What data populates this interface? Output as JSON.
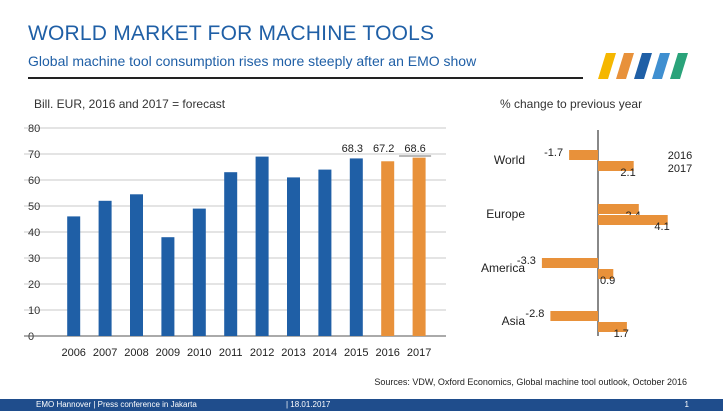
{
  "header": {
    "title": "WORLD MARKET FOR MACHINE TOOLS",
    "subtitle": "Global machine tool consumption rises more steeply after an EMO show"
  },
  "chart_data": [
    {
      "type": "bar",
      "ylabel": "Bill. EUR, 2016 and 2017 = forecast",
      "categories": [
        "2006",
        "2007",
        "2008",
        "2009",
        "2010",
        "2011",
        "2012",
        "2013",
        "2014",
        "2015",
        "2016",
        "2017"
      ],
      "values": [
        46,
        52,
        54.5,
        38,
        49,
        63,
        69,
        61,
        64,
        68.3,
        67.2,
        68.6
      ],
      "colors": [
        "#1f5fa6",
        "#1f5fa6",
        "#1f5fa6",
        "#1f5fa6",
        "#1f5fa6",
        "#1f5fa6",
        "#1f5fa6",
        "#1f5fa6",
        "#1f5fa6",
        "#1f5fa6",
        "#e8913a",
        "#e8913a"
      ],
      "data_labels": [
        {
          "index": 9,
          "text": "68.3"
        },
        {
          "index": 10,
          "text": "67.2"
        },
        {
          "index": 11,
          "text": "68.6"
        }
      ],
      "yticks": [
        0,
        10,
        20,
        30,
        40,
        50,
        60,
        70,
        80
      ],
      "ylim": [
        0,
        80
      ]
    },
    {
      "type": "bar",
      "orientation": "horizontal",
      "title": "% change to previous year",
      "categories": [
        "World",
        "Europe",
        "America",
        "Asia"
      ],
      "series": [
        {
          "name": "2016",
          "values": [
            -1.7,
            2.4,
            -3.3,
            -2.8
          ],
          "color": "#e8913a"
        },
        {
          "name": "2017",
          "values": [
            2.1,
            4.1,
            0.9,
            1.7
          ],
          "color": "#e8913a"
        }
      ],
      "legend_text": [
        "2016",
        "2017"
      ],
      "legend_position": "top-right"
    }
  ],
  "sources": "Sources: VDW, Oxford Economics, Global machine tool outlook, October 2016",
  "footer": {
    "left": "EMO Hannover | Press conference in Jakarta",
    "date": "| 18.01.2017",
    "page": "1"
  },
  "logo": {
    "colors": [
      "#f5b700",
      "#e8913a",
      "#1f5fa6",
      "#3f8fd0",
      "#2aa37a"
    ]
  }
}
